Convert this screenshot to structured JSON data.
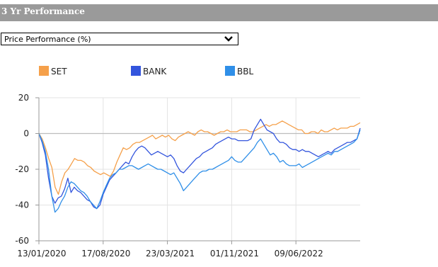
{
  "header": {
    "title": "3 Yr Performance"
  },
  "selector": {
    "value": "Price Performance (%)"
  },
  "chart_data": {
    "type": "line",
    "title": "",
    "xlabel": "",
    "ylabel": "",
    "ylim": [
      -60,
      20
    ],
    "yticks": [
      20,
      0,
      -20,
      -40,
      -60
    ],
    "xticks": [
      "13/01/2020",
      "17/08/2020",
      "23/03/2021",
      "01/11/2021",
      "09/06/2022"
    ],
    "grid": true,
    "legend": "top",
    "x_index_range": [
      0,
      100
    ],
    "xtick_positions": [
      0,
      20,
      40,
      60,
      80
    ],
    "series": [
      {
        "name": "SET",
        "color": "#f5a04a",
        "values": [
          0,
          -3,
          -8,
          -14,
          -19,
          -30,
          -34,
          -27,
          -22,
          -20,
          -17,
          -14,
          -15,
          -15,
          -16,
          -18,
          -19,
          -21,
          -22,
          -23,
          -22,
          -23,
          -24,
          -21,
          -16,
          -12,
          -8,
          -9,
          -8,
          -6,
          -5,
          -5,
          -4,
          -3,
          -2,
          -1,
          -3,
          -2,
          -1,
          -2,
          -1,
          -3,
          -4,
          -2,
          -1,
          0,
          1,
          0,
          -1,
          1,
          2,
          1,
          1,
          0,
          -1,
          0,
          1,
          1,
          2,
          1,
          1,
          1,
          2,
          2,
          2,
          1,
          1,
          2,
          3,
          4,
          5,
          4,
          5,
          5,
          6,
          7,
          6,
          5,
          4,
          3,
          2,
          2,
          0,
          0,
          1,
          1,
          0,
          2,
          1,
          1,
          2,
          3,
          2,
          3,
          3,
          3,
          4,
          4,
          5,
          6
        ]
      },
      {
        "name": "BANK",
        "color": "#3355dd",
        "values": [
          0,
          -5,
          -12,
          -25,
          -35,
          -39,
          -36,
          -35,
          -31,
          -25,
          -33,
          -30,
          -32,
          -33,
          -35,
          -37,
          -38,
          -41,
          -42,
          -40,
          -34,
          -30,
          -26,
          -24,
          -22,
          -20,
          -18,
          -16,
          -17,
          -13,
          -10,
          -8,
          -7,
          -8,
          -10,
          -12,
          -11,
          -10,
          -11,
          -12,
          -13,
          -12,
          -14,
          -18,
          -21,
          -22,
          -20,
          -18,
          -16,
          -14,
          -13,
          -11,
          -10,
          -9,
          -8,
          -6,
          -5,
          -4,
          -3,
          -2,
          -3,
          -3,
          -4,
          -4,
          -4,
          -4,
          -3,
          2,
          5,
          8,
          5,
          2,
          1,
          0,
          -3,
          -5,
          -5,
          -6,
          -8,
          -9,
          -9,
          -10,
          -9,
          -10,
          -10,
          -11,
          -12,
          -13,
          -12,
          -11,
          -10,
          -11,
          -9,
          -8,
          -7,
          -6,
          -5,
          -5,
          -4,
          -3,
          3
        ]
      },
      {
        "name": "BBL",
        "color": "#2f8fe8",
        "values": [
          0,
          -4,
          -10,
          -20,
          -35,
          -44,
          -42,
          -38,
          -35,
          -30,
          -27,
          -28,
          -30,
          -32,
          -33,
          -35,
          -38,
          -40,
          -42,
          -38,
          -33,
          -29,
          -25,
          -23,
          -22,
          -20,
          -20,
          -19,
          -18,
          -18,
          -19,
          -20,
          -19,
          -18,
          -17,
          -18,
          -19,
          -20,
          -20,
          -21,
          -22,
          -23,
          -22,
          -25,
          -28,
          -32,
          -30,
          -28,
          -26,
          -24,
          -22,
          -21,
          -21,
          -20,
          -20,
          -19,
          -18,
          -17,
          -16,
          -15,
          -13,
          -15,
          -16,
          -16,
          -14,
          -12,
          -10,
          -8,
          -5,
          -3,
          -6,
          -9,
          -12,
          -11,
          -13,
          -16,
          -15,
          -17,
          -18,
          -18,
          -18,
          -17,
          -19,
          -18,
          -17,
          -16,
          -15,
          -14,
          -13,
          -12,
          -11,
          -12,
          -10,
          -10,
          -9,
          -8,
          -7,
          -6,
          -5,
          -3,
          2
        ]
      }
    ]
  }
}
